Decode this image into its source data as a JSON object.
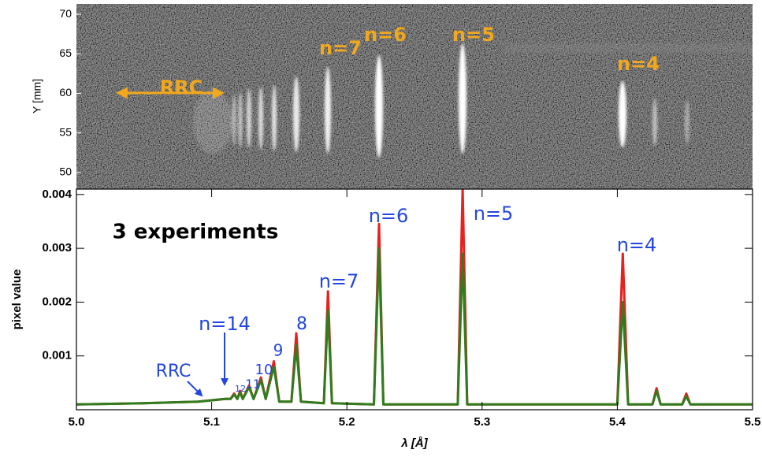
{
  "chart_data": [
    {
      "type": "image",
      "ylabel": "Y [mm]",
      "ylim": [
        47.9,
        71.3
      ],
      "yticks": [
        50,
        55,
        60,
        65,
        70
      ],
      "annotations": [
        "n=7",
        "n=6",
        "n=5",
        "n=4",
        "RRC"
      ]
    },
    {
      "type": "line",
      "xlabel": "λ [Å]",
      "ylabel": "pixel value",
      "xlim": [
        5.0,
        5.5
      ],
      "xticks": [
        {
          "value": 5.0,
          "label": "5.0"
        },
        5.1,
        5.2,
        5.3,
        5.4,
        5.5
      ],
      "ylim": [
        0,
        0.0041
      ],
      "yticks": [
        0.001,
        0.002,
        0.003,
        0.004
      ],
      "x": [
        5.0,
        5.05,
        5.09,
        5.11,
        5.114,
        5.1166,
        5.119,
        5.121,
        5.123,
        5.1276,
        5.131,
        5.1364,
        5.14,
        5.146,
        5.15,
        5.159,
        5.1626,
        5.166,
        5.183,
        5.186,
        5.189,
        5.22,
        5.2238,
        5.227,
        5.282,
        5.2856,
        5.289,
        5.4,
        5.404,
        5.408,
        5.426,
        5.429,
        5.432,
        5.448,
        5.451,
        5.454,
        5.5
      ],
      "series": [
        {
          "color": "#e8201e",
          "values": [
            0.0001,
            0.00012,
            0.00015,
            0.0002,
            0.0002,
            0.0003,
            0.0002,
            0.00035,
            0.0002,
            0.00045,
            0.0002,
            0.0006,
            0.0002,
            0.0009,
            0.00015,
            0.00015,
            0.00142,
            0.00015,
            0.00012,
            0.0022,
            0.00012,
            0.0001,
            0.00345,
            0.0001,
            0.0001,
            0.0041,
            0.0001,
            0.0001,
            0.0029,
            0.0001,
            0.0001,
            0.0004,
            0.0001,
            0.0001,
            0.0003,
            0.0001,
            0.0001
          ]
        },
        {
          "color": "#2e7d1e",
          "values": [
            0.0001,
            0.00012,
            0.00015,
            0.0002,
            0.0002,
            0.00028,
            0.0002,
            0.00032,
            0.0002,
            0.00042,
            0.0002,
            0.00055,
            0.0002,
            0.0008,
            0.00015,
            0.00015,
            0.0012,
            0.00015,
            0.00012,
            0.00185,
            0.00012,
            0.0001,
            0.003,
            0.0001,
            0.0001,
            0.0029,
            0.0001,
            0.0001,
            0.002,
            0.0001,
            0.0001,
            0.00035,
            0.0001,
            0.0001,
            0.00025,
            0.0001,
            0.0001
          ]
        }
      ],
      "annotations": [
        "3 experiments",
        "n=6",
        "n=5",
        "n=7",
        "8",
        "9",
        "10",
        "11",
        "12",
        "n=4",
        "n=14",
        "RRC"
      ]
    }
  ]
}
